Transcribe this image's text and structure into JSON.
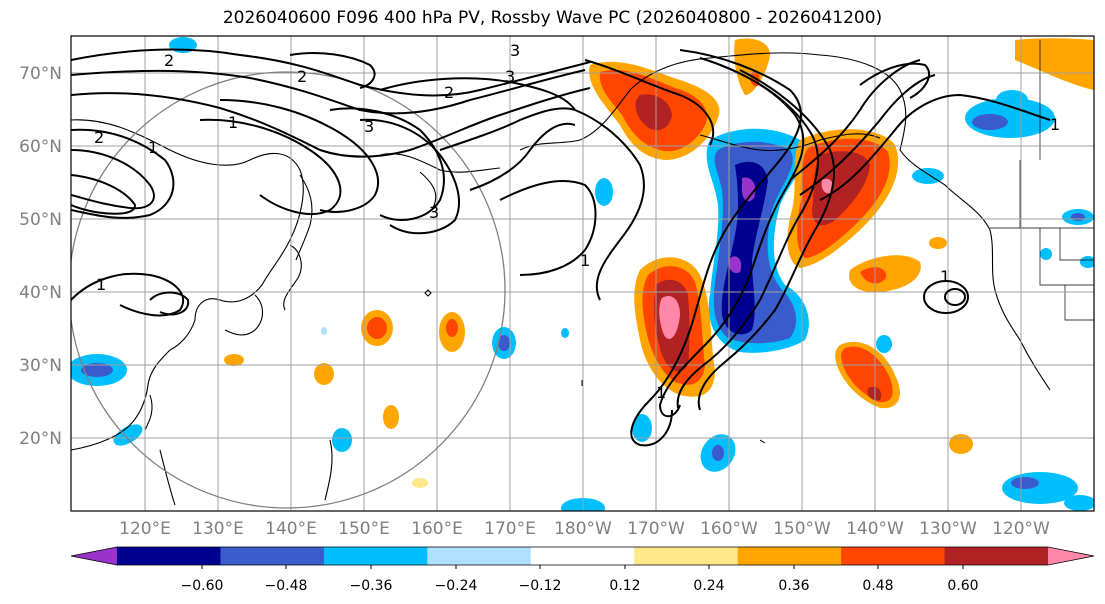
{
  "title": "2026040600 F096 400 hPa PV, Rossby Wave PC (2026040800 - 2026041200)",
  "latitude_labels": [
    "70°N",
    "60°N",
    "50°N",
    "40°N",
    "30°N",
    "20°N"
  ],
  "longitude_labels": [
    "120°E",
    "130°E",
    "140°E",
    "150°E",
    "160°E",
    "170°E",
    "180°W",
    "170°W",
    "160°W",
    "150°W",
    "140°W",
    "130°W",
    "120°W"
  ],
  "contour_labels": [
    "3",
    "2",
    "2",
    "3",
    "1",
    "2",
    "1",
    "2",
    "3",
    "1",
    "3",
    "1",
    "1",
    "1",
    "1"
  ],
  "colorbar": {
    "tick_labels": [
      "−0.60",
      "−0.48",
      "−0.36",
      "−0.24",
      "−0.12",
      "0.12",
      "0.24",
      "0.36",
      "0.48",
      "0.60"
    ],
    "colors": [
      "#9933cc",
      "#000090",
      "#3a5bcc",
      "#00bfff",
      "#b0e0ff",
      "#ffffff",
      "#ffe88a",
      "#ffa500",
      "#ff4500",
      "#b22222",
      "#ff88aa"
    ]
  }
}
